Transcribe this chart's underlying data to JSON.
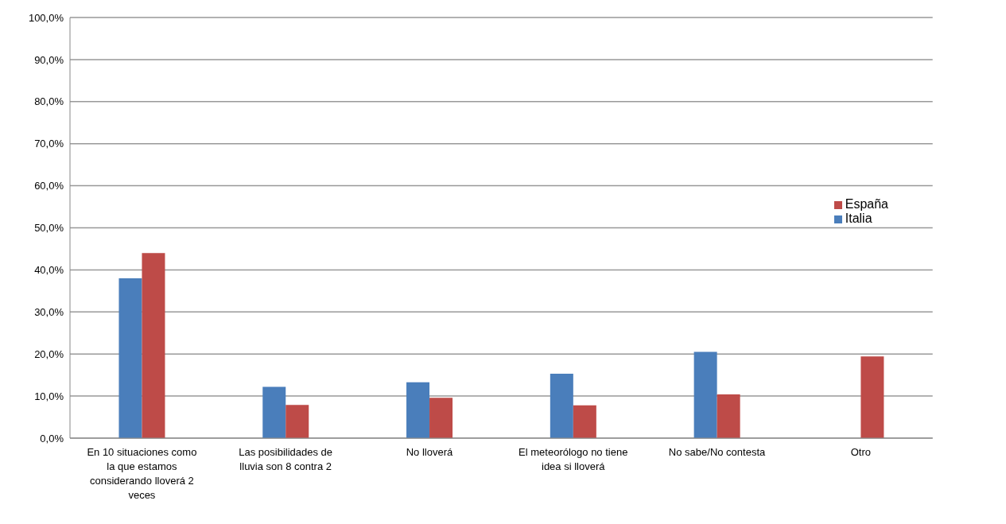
{
  "chart_data": {
    "type": "bar",
    "categories": [
      "En 10 situaciones como la que estamos considerando lloverá 2 veces",
      "Las posibilidades de lluvia son 8 contra 2",
      "No lloverá",
      "El meteorólogo no tiene idea si lloverá",
      "No sabe/No contesta",
      "Otro"
    ],
    "series": [
      {
        "name": "Italia",
        "color": "#4a7ebb",
        "values": [
          38.0,
          12.2,
          13.3,
          15.3,
          20.5,
          null
        ]
      },
      {
        "name": "España",
        "color": "#be4b48",
        "values": [
          44.0,
          7.9,
          9.6,
          7.8,
          10.4,
          19.4
        ]
      }
    ],
    "ylim": [
      0,
      100
    ],
    "yticks": [
      {
        "value": 0,
        "label": "0,0%"
      },
      {
        "value": 10,
        "label": "10,0%"
      },
      {
        "value": 20,
        "label": "20,0%"
      },
      {
        "value": 30,
        "label": "30,0%"
      },
      {
        "value": 40,
        "label": "40,0%"
      },
      {
        "value": 50,
        "label": "50,0%"
      },
      {
        "value": 60,
        "label": "60,0%"
      },
      {
        "value": 70,
        "label": "70,0%"
      },
      {
        "value": 80,
        "label": "80,0%"
      },
      {
        "value": 90,
        "label": "90,0%"
      },
      {
        "value": 100,
        "label": "100,0%"
      }
    ],
    "grid": "y",
    "legend": "right"
  }
}
